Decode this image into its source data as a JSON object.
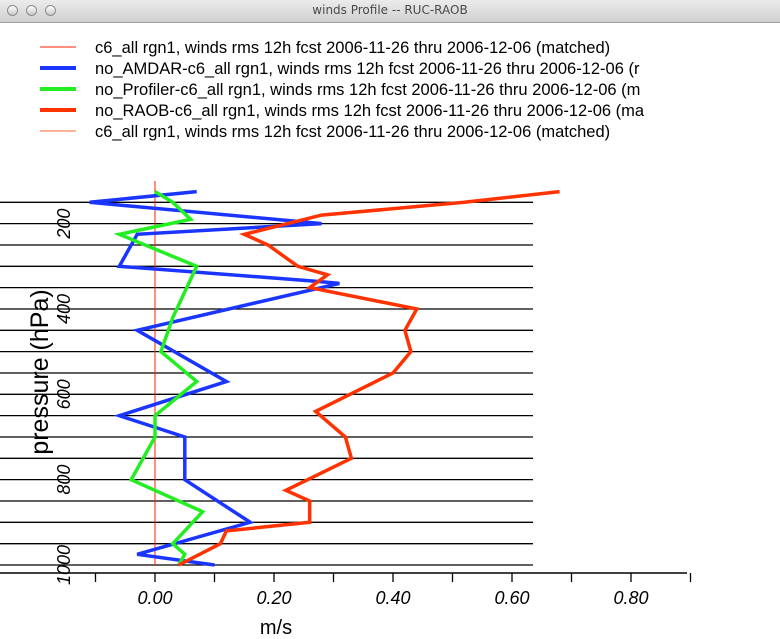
{
  "window": {
    "title": "winds Profile -- RUC-RAOB",
    "buttons": [
      "close",
      "minimize",
      "zoom"
    ]
  },
  "chart_data": {
    "type": "line",
    "orientation": "vertical-profile",
    "title": "",
    "xlabel": "m/s",
    "ylabel": "pressure (hPa)",
    "xlim": [
      -0.12,
      0.66
    ],
    "ylim": [
      1000,
      100
    ],
    "x_ticks": [
      0.0,
      0.2,
      0.4,
      0.6,
      0.8
    ],
    "x_tick_labels": [
      "0.00",
      "0.20",
      "0.40",
      "0.60",
      "0.80"
    ],
    "y_ticks": [
      200,
      400,
      600,
      800,
      1000
    ],
    "y_tick_labels": [
      "200",
      "400",
      "600",
      "800",
      "1000"
    ],
    "y_gridlines": [
      150,
      200,
      250,
      300,
      350,
      400,
      450,
      500,
      550,
      600,
      650,
      700,
      750,
      800,
      850,
      900,
      950,
      1000
    ],
    "legend_position": "top",
    "series": [
      {
        "name": "c6_all rgn1, winds rms 12h fcst 2006-11-26 thru 2006-12-06 (matched)",
        "color": "#ff2200",
        "thin": true,
        "x": [
          0.0,
          0.0
        ],
        "pressure": [
          100,
          1000
        ]
      },
      {
        "name": "no_AMDAR-c6_all rgn1, winds rms 12h fcst 2006-11-26 thru 2006-12-06 (r",
        "color": "#1a35ff",
        "thin": false,
        "x": [
          0.07,
          -0.11,
          0.28,
          -0.03,
          -0.06,
          0.27,
          0.31,
          -0.03,
          0.12,
          -0.06,
          0.05,
          0.05,
          0.16,
          -0.03,
          0.1
        ],
        "pressure": [
          125,
          150,
          200,
          225,
          300,
          335,
          340,
          450,
          570,
          650,
          700,
          800,
          900,
          975,
          1000
        ]
      },
      {
        "name": "no_Profiler-c6_all rgn1, winds rms 12h fcst 2006-11-26 thru 2006-12-06 (m",
        "color": "#22ee22",
        "thin": false,
        "x": [
          0.0,
          0.03,
          0.06,
          -0.06,
          0.07,
          0.03,
          0.01,
          0.07,
          0.0,
          0.0,
          -0.04,
          0.08,
          0.03,
          0.05,
          0.04
        ],
        "pressure": [
          125,
          150,
          190,
          225,
          300,
          420,
          500,
          570,
          650,
          700,
          800,
          875,
          950,
          975,
          1000
        ]
      },
      {
        "name": "no_RAOB-c6_all rgn1, winds rms 12h fcst 2006-11-26 thru 2006-12-06 (ma",
        "color": "#ff3300",
        "thin": false,
        "x": [
          0.68,
          0.52,
          0.28,
          0.15,
          0.19,
          0.24,
          0.29,
          0.26,
          0.44,
          0.42,
          0.43,
          0.4,
          0.27,
          0.32,
          0.33,
          0.22,
          0.26,
          0.26,
          0.12,
          0.11,
          0.04
        ],
        "pressure": [
          125,
          150,
          180,
          225,
          250,
          300,
          320,
          350,
          400,
          450,
          500,
          550,
          640,
          700,
          750,
          825,
          850,
          900,
          920,
          950,
          1000
        ]
      },
      {
        "name": "c6_all rgn1, winds rms 12h fcst 2006-11-26 thru 2006-12-06 (matched)",
        "color": "#ff6a33",
        "thin": true,
        "x": [],
        "pressure": []
      }
    ]
  }
}
